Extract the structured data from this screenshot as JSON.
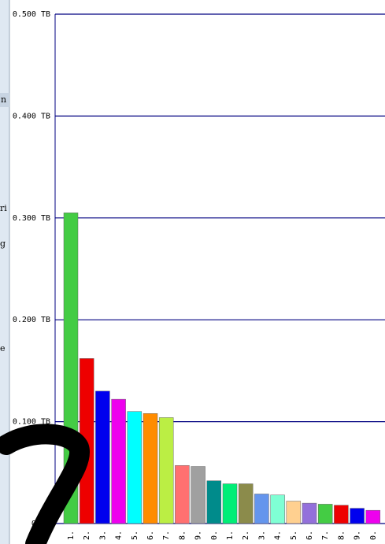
{
  "sidebar": {
    "fragments": [
      "n",
      "ri",
      "g",
      "e"
    ]
  },
  "chart_data": {
    "type": "bar",
    "categories": [
      "1.",
      "2.",
      "3.",
      "4.",
      "5.",
      "6.",
      "7.",
      "8.",
      "9.",
      "0.",
      "1.",
      "2.",
      "3.",
      "4.",
      "5.",
      "6.",
      "7.",
      "8.",
      "9.",
      "0."
    ],
    "values": [
      0.305,
      0.162,
      0.13,
      0.122,
      0.11,
      0.108,
      0.104,
      0.057,
      0.056,
      0.042,
      0.039,
      0.039,
      0.029,
      0.028,
      0.022,
      0.02,
      0.019,
      0.018,
      0.015,
      0.013
    ],
    "colors": [
      "#44cc44",
      "#ee0000",
      "#0000ee",
      "#ee00ee",
      "#00ffff",
      "#ff8c00",
      "#bbee44",
      "#ff7070",
      "#a0a0a0",
      "#008b8b",
      "#00ee77",
      "#8b8b4b",
      "#6495ed",
      "#7fffd4",
      "#ffd090",
      "#9370db",
      "#44cc44",
      "#ee0000",
      "#0000ee",
      "#ee00ee"
    ],
    "ylim": [
      0,
      0.5
    ],
    "yticks": [
      {
        "value": 0,
        "label": "0 TB"
      },
      {
        "value": 0.1,
        "label": "0.100 TB"
      },
      {
        "value": 0.2,
        "label": "0.200 TB"
      },
      {
        "value": 0.3,
        "label": "0.300 TB"
      },
      {
        "value": 0.4,
        "label": "0.400 TB"
      },
      {
        "value": 0.5,
        "label": "0.500 TB"
      }
    ],
    "grid": true
  }
}
